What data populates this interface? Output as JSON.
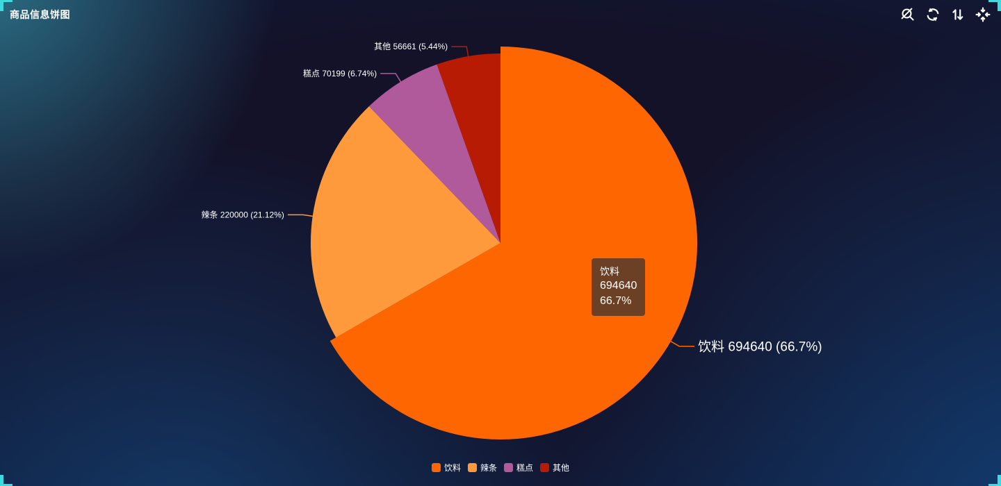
{
  "window": {
    "title": "商品信息饼图"
  },
  "toolbar": {
    "icons": [
      {
        "name": "zoom-reset-icon"
      },
      {
        "name": "refresh-icon"
      },
      {
        "name": "sort-vertical-icon"
      },
      {
        "name": "focus-center-icon"
      }
    ]
  },
  "chart_data": {
    "type": "pie",
    "title": "商品信息饼图",
    "start_angle_deg": 90,
    "direction": "clockwise",
    "center": [
      720,
      350
    ],
    "radius": 273,
    "radius_hover": 283,
    "legend_position": "bottom-center",
    "label_format": "{name} {value} ({percent}%)",
    "slices": [
      {
        "name": "饮料",
        "value": 694640,
        "percent": "66.7",
        "color": "#fe6602",
        "hovered": true
      },
      {
        "name": "辣条",
        "value": 220000,
        "percent": "21.12",
        "color": "#ff9a3c",
        "hovered": false
      },
      {
        "name": "糕点",
        "value": 70199,
        "percent": "6.74",
        "color": "#b05a9b",
        "hovered": false
      },
      {
        "name": "其他",
        "value": 56661,
        "percent": "5.44",
        "color": "#b81b04",
        "hovered": false
      }
    ],
    "legend": [
      "饮料",
      "辣条",
      "糕点",
      "其他"
    ]
  },
  "tooltip": {
    "name": "饮料",
    "value": "694640",
    "percent": "66.7%"
  },
  "colors": {
    "accent_cyan": "#3fd9e0",
    "background_center": "#131229",
    "background_top_left_glow": "#2d748a",
    "background_bottom_blue": "#0e2247",
    "tooltip_background": "rgba(50,50,50,0.72)",
    "label_text": "#ffffff",
    "icon_color": "#ffffff"
  }
}
